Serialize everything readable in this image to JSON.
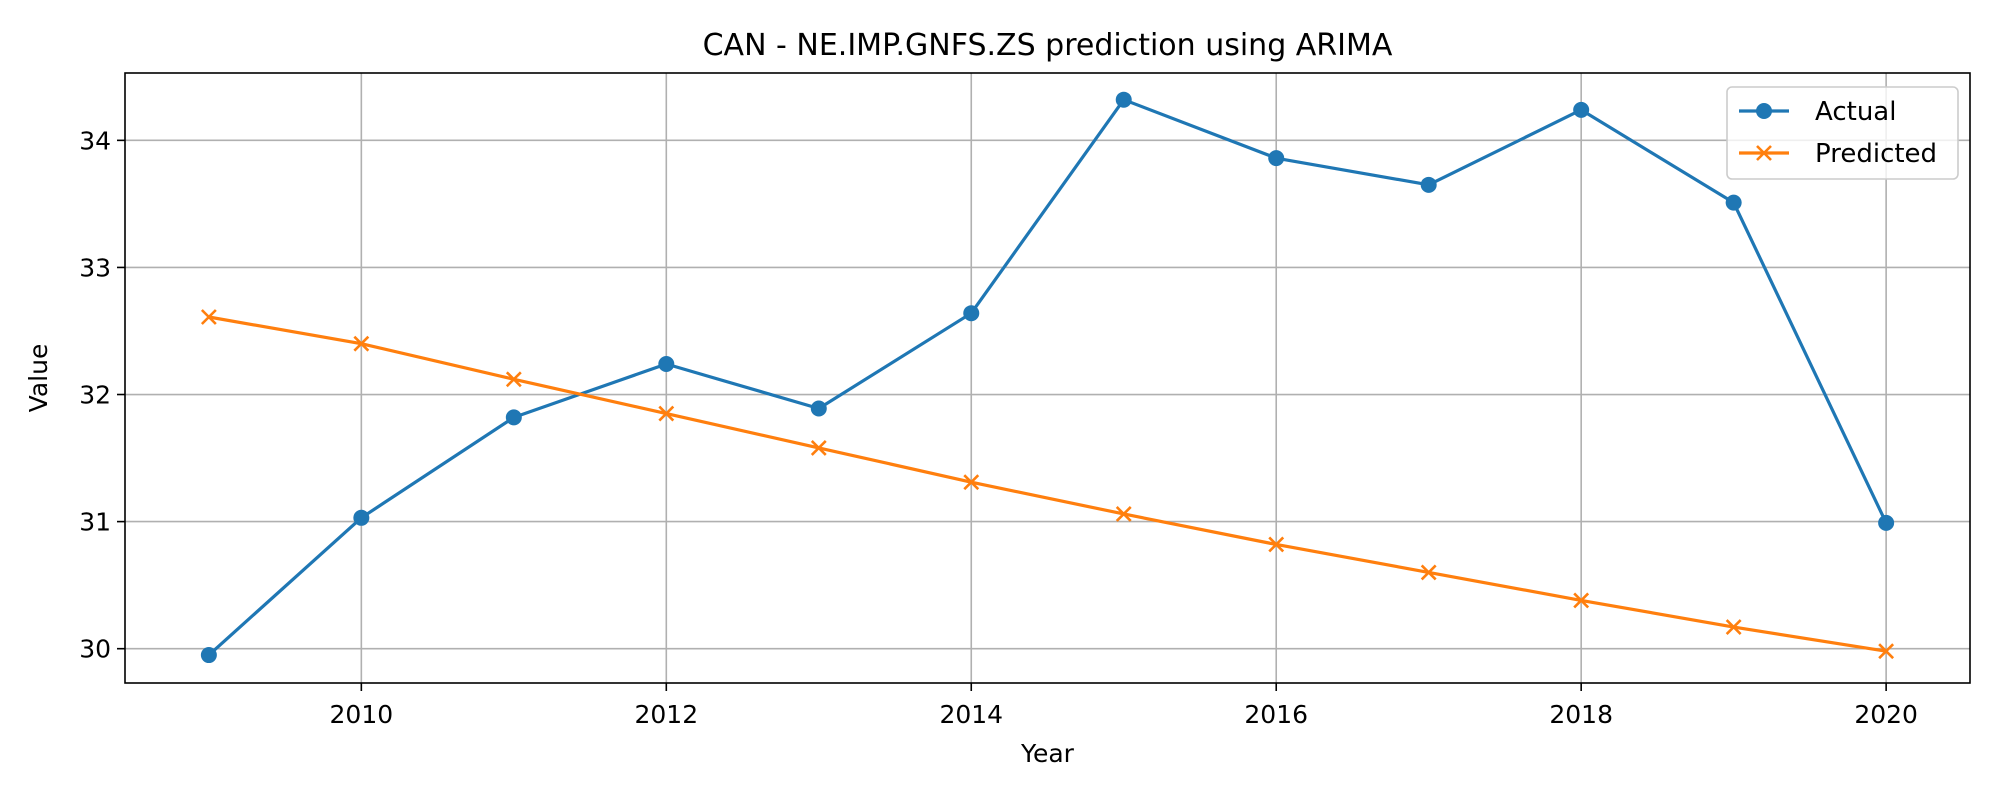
{
  "chart_data": {
    "type": "line",
    "title": "CAN - NE.IMP.GNFS.ZS prediction using ARIMA",
    "xlabel": "Year",
    "ylabel": "Value",
    "x": [
      2009,
      2010,
      2011,
      2012,
      2013,
      2014,
      2015,
      2016,
      2017,
      2018,
      2019,
      2020
    ],
    "xlim": [
      2008.45,
      2020.55
    ],
    "ylim": [
      29.73,
      34.53
    ],
    "xticks": [
      "2010",
      "2012",
      "2014",
      "2016",
      "2018",
      "2020"
    ],
    "yticks": [
      "30",
      "31",
      "32",
      "33",
      "34"
    ],
    "grid": true,
    "legend_position": "top-right",
    "series": [
      {
        "name": "Actual",
        "color": "#1f77b4",
        "marker": "circle",
        "values": [
          29.95,
          31.03,
          31.82,
          32.24,
          31.89,
          32.64,
          34.32,
          33.86,
          33.65,
          34.24,
          33.51,
          30.99
        ]
      },
      {
        "name": "Predicted",
        "color": "#ff7f0e",
        "marker": "x",
        "values": [
          32.61,
          32.4,
          32.12,
          31.85,
          31.58,
          31.31,
          31.06,
          30.82,
          30.6,
          30.38,
          30.17,
          29.98
        ]
      }
    ]
  }
}
